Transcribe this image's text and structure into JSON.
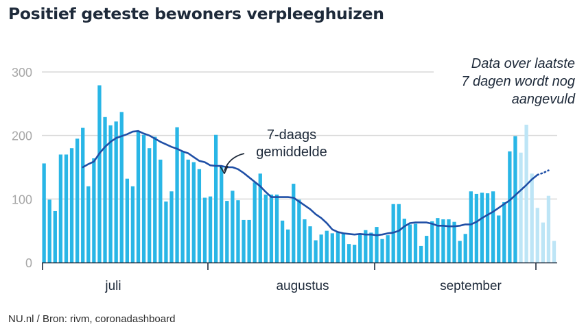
{
  "title": "Positief geteste bewoners verpleeghuizen",
  "source": "NU.nl / Bron: rivm, coronadashboard",
  "colors": {
    "bar": "#29b6e6",
    "bar_incomplete": "#bde5f6",
    "line": "#1f4fa6",
    "grid": "#d9d9d9",
    "axis": "#1e2a3a"
  },
  "chart_data": {
    "type": "bar",
    "title": "Positief geteste bewoners verpleeghuizen",
    "xlabel": "",
    "ylabel": "",
    "ylim": [
      0,
      300
    ],
    "yticks": [
      "300",
      "200",
      "100",
      "0"
    ],
    "month_labels": [
      "juli",
      "augustus",
      "september"
    ],
    "series": [
      {
        "name": "Positief geteste bewoners",
        "values": [
          156,
          99,
          81,
          170,
          170,
          180,
          195,
          212,
          120,
          164,
          279,
          229,
          216,
          222,
          237,
          132,
          120,
          206,
          201,
          180,
          198,
          162,
          96,
          112,
          213,
          175,
          162,
          158,
          147,
          102,
          104,
          201,
          151,
          97,
          113,
          98,
          67,
          67,
          126,
          140,
          107,
          107,
          107,
          66,
          52,
          124,
          99,
          68,
          57,
          35,
          44,
          50,
          46,
          48,
          46,
          29,
          28,
          45,
          51,
          47,
          56,
          37,
          43,
          92,
          92,
          69,
          60,
          61,
          26,
          42,
          65,
          70,
          68,
          68,
          64,
          34,
          45,
          112,
          108,
          110,
          109,
          112,
          74,
          95,
          175,
          199,
          173,
          217,
          140,
          86,
          63,
          105,
          34
        ]
      },
      {
        "name": "7-daags gemiddelde",
        "values": [
          150,
          155,
          159,
          172,
          182,
          190,
          196,
          199,
          202,
          206,
          207,
          203,
          200,
          195,
          190,
          186,
          182,
          179,
          175,
          172,
          166,
          160,
          158,
          153,
          152,
          152,
          150,
          150,
          147,
          141,
          134,
          127,
          120,
          111,
          103,
          103,
          103,
          103,
          102,
          96,
          90,
          84,
          76,
          70,
          62,
          52,
          48,
          46,
          45,
          44,
          45,
          44,
          44,
          43,
          44,
          46,
          47,
          50,
          57,
          62,
          63,
          63,
          63,
          61,
          58,
          58,
          57,
          57,
          58,
          60,
          60,
          64,
          70,
          75,
          80,
          86,
          92,
          98,
          106,
          114,
          122,
          131,
          138,
          141,
          145
        ]
      }
    ],
    "incomplete_from_index": 86,
    "annotations": {
      "avg_label": [
        "7-daags",
        "gemiddelde"
      ],
      "incomplete_note": [
        "Data over laatste",
        "7 dagen wordt nog",
        "aangevuld"
      ]
    }
  }
}
